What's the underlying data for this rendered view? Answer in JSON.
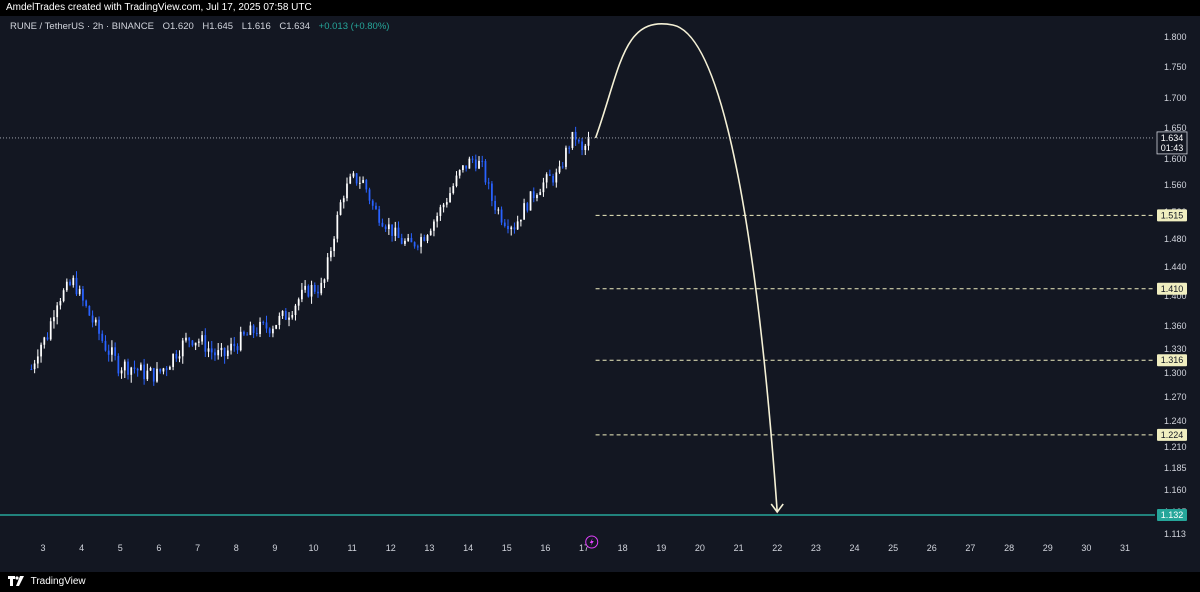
{
  "header": {
    "created_text": "AmdelTrades created with TradingView.com, Jul 17, 2025 07:58 UTC"
  },
  "symbol_line": {
    "symbol": "RUNE / TetherUS · 2h · BINANCE",
    "open": "O1.620",
    "high": "H1.645",
    "low": "L1.616",
    "close": "C1.634",
    "change": "+0.013 (+0.80%)"
  },
  "footer": {
    "brand": "TradingView"
  },
  "colors": {
    "background": "#131722",
    "up_candle": "#ffffff",
    "down_candle": "#2962ff",
    "level_line": "#f0eec0",
    "level_label_bg": "#f0eec0",
    "support_line": "#26a69a",
    "arrow": "#f5f1d6"
  },
  "chart_data": {
    "type": "candlestick",
    "title": "",
    "x_ticks": [
      "3",
      "4",
      "5",
      "6",
      "7",
      "8",
      "9",
      "10",
      "11",
      "12",
      "13",
      "14",
      "15",
      "16",
      "17",
      "18",
      "19",
      "20",
      "21",
      "22",
      "23",
      "24",
      "25",
      "26",
      "27",
      "28",
      "29",
      "30",
      "31"
    ],
    "y_ticks": [
      "1.800",
      "1.750",
      "1.700",
      "1.650",
      "1.600",
      "1.560",
      "1.520",
      "1.480",
      "1.440",
      "1.400",
      "1.360",
      "1.330",
      "1.300",
      "1.270",
      "1.240",
      "1.210",
      "1.185",
      "1.160",
      "1.135",
      "1.113"
    ],
    "y_range": [
      1.1,
      1.83
    ],
    "last_price": {
      "value": "1.634",
      "countdown": "01:43"
    },
    "levels": [
      {
        "value": 1.515,
        "label": "1.515",
        "style": "dashed"
      },
      {
        "value": 1.41,
        "label": "1.410",
        "style": "dashed"
      },
      {
        "value": 1.316,
        "label": "1.316",
        "style": "dashed"
      },
      {
        "value": 1.224,
        "label": "1.224",
        "style": "dashed"
      },
      {
        "value": 1.132,
        "label": "1.132",
        "style": "solid"
      }
    ],
    "price_path": [
      [
        2.7,
        1.305
      ],
      [
        2.9,
        1.335
      ],
      [
        3.1,
        1.345
      ],
      [
        3.35,
        1.395
      ],
      [
        3.55,
        1.405
      ],
      [
        3.8,
        1.42
      ],
      [
        4.0,
        1.395
      ],
      [
        4.3,
        1.365
      ],
      [
        4.6,
        1.335
      ],
      [
        4.95,
        1.31
      ],
      [
        5.3,
        1.308
      ],
      [
        5.6,
        1.3
      ],
      [
        5.95,
        1.298
      ],
      [
        6.2,
        1.31
      ],
      [
        6.5,
        1.33
      ],
      [
        6.8,
        1.345
      ],
      [
        7.1,
        1.34
      ],
      [
        7.4,
        1.325
      ],
      [
        7.65,
        1.32
      ],
      [
        7.9,
        1.333
      ],
      [
        8.2,
        1.345
      ],
      [
        8.5,
        1.355
      ],
      [
        8.9,
        1.36
      ],
      [
        9.3,
        1.375
      ],
      [
        9.6,
        1.395
      ],
      [
        9.9,
        1.41
      ],
      [
        10.25,
        1.412
      ],
      [
        10.5,
        1.48
      ],
      [
        10.75,
        1.545
      ],
      [
        11.0,
        1.57
      ],
      [
        11.3,
        1.565
      ],
      [
        11.55,
        1.525
      ],
      [
        11.85,
        1.505
      ],
      [
        12.2,
        1.48
      ],
      [
        12.5,
        1.47
      ],
      [
        12.85,
        1.485
      ],
      [
        13.2,
        1.515
      ],
      [
        13.5,
        1.545
      ],
      [
        13.8,
        1.58
      ],
      [
        14.1,
        1.6
      ],
      [
        14.35,
        1.59
      ],
      [
        14.6,
        1.54
      ],
      [
        14.9,
        1.51
      ],
      [
        15.2,
        1.5
      ],
      [
        15.5,
        1.53
      ],
      [
        15.8,
        1.555
      ],
      [
        16.1,
        1.57
      ],
      [
        16.35,
        1.575
      ],
      [
        16.55,
        1.615
      ],
      [
        16.75,
        1.64
      ],
      [
        16.95,
        1.61
      ],
      [
        17.15,
        1.634
      ]
    ],
    "projection": {
      "start": [
        17.3,
        1.634
      ],
      "peak": [
        19.3,
        1.82
      ],
      "end": [
        22.0,
        1.135
      ]
    }
  }
}
